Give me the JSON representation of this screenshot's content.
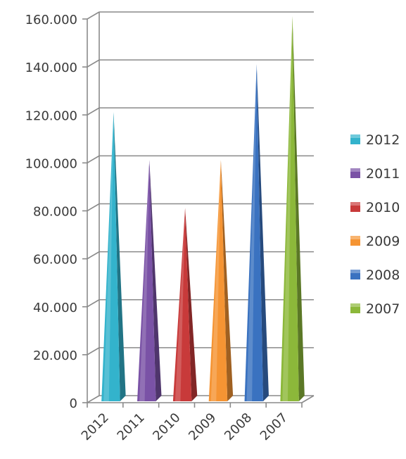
{
  "chart_data": {
    "type": "bar",
    "bar_shape": "pyramid-3d",
    "categories": [
      "2012",
      "2011",
      "2010",
      "2009",
      "2008",
      "2007"
    ],
    "values": [
      120000,
      100000,
      80000,
      100000,
      140000,
      160000
    ],
    "y_ticks": [
      {
        "value": 0,
        "label": "0"
      },
      {
        "value": 20000,
        "label": "20.000"
      },
      {
        "value": 40000,
        "label": "40.000"
      },
      {
        "value": 60000,
        "label": "60.000"
      },
      {
        "value": 80000,
        "label": "80.000"
      },
      {
        "value": 100000,
        "label": "100.000"
      },
      {
        "value": 120000,
        "label": "120.000"
      },
      {
        "value": 140000,
        "label": "140.000"
      },
      {
        "value": 160000,
        "label": "160.000"
      }
    ],
    "ylim": [
      0,
      160000
    ],
    "title": "",
    "xlabel": "",
    "ylabel": "",
    "grid": true,
    "legend": {
      "position": "right",
      "entries": [
        {
          "label": "2012",
          "color": "#33b3cc"
        },
        {
          "label": "2011",
          "color": "#7a52a6"
        },
        {
          "label": "2010",
          "color": "#c83a3a"
        },
        {
          "label": "2009",
          "color": "#f59433"
        },
        {
          "label": "2008",
          "color": "#3a72c0"
        },
        {
          "label": "2007",
          "color": "#8cb83a"
        }
      ]
    },
    "colors": [
      "#33b3cc",
      "#7a52a6",
      "#c83a3a",
      "#f59433",
      "#3a72c0",
      "#8cb83a"
    ]
  }
}
